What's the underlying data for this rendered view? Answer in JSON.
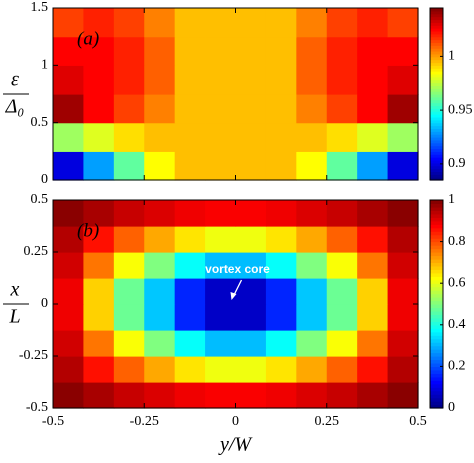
{
  "chart_data": [
    {
      "type": "heatmap",
      "label": "(a)",
      "ylabel": {
        "numerator": "ε",
        "denominator": "Δ₀"
      },
      "colormap": "jet",
      "xlim": [
        -0.5,
        0.5
      ],
      "xticks": [
        -0.5,
        -0.25,
        0,
        0.25,
        0.5
      ],
      "ylim": [
        0,
        1.5
      ],
      "yticks": [
        0,
        0.5,
        1,
        1.5
      ],
      "clim": [
        0.885,
        1.045
      ],
      "cticks": [
        0.9,
        0.95,
        1
      ],
      "z": [
        [
          0.9,
          0.93,
          0.96,
          0.985,
          0.995,
          0.995,
          0.995,
          0.995,
          0.985,
          0.96,
          0.93,
          0.9
        ],
        [
          0.97,
          0.98,
          0.99,
          0.995,
          0.995,
          0.995,
          0.995,
          0.995,
          0.995,
          0.99,
          0.98,
          0.97
        ],
        [
          1.04,
          1.025,
          1.015,
          1.005,
          0.995,
          0.995,
          0.995,
          0.995,
          1.005,
          1.015,
          1.025,
          1.04
        ],
        [
          1.03,
          1.025,
          1.02,
          1.01,
          0.995,
          0.995,
          0.995,
          0.995,
          1.01,
          1.02,
          1.025,
          1.03
        ],
        [
          1.025,
          1.025,
          1.02,
          1.01,
          0.995,
          0.995,
          0.995,
          0.995,
          1.01,
          1.02,
          1.025,
          1.025
        ],
        [
          1.015,
          1.02,
          1.015,
          1.005,
          0.995,
          0.995,
          0.995,
          0.995,
          1.005,
          1.015,
          1.02,
          1.015
        ]
      ]
    },
    {
      "type": "heatmap",
      "label": "(b)",
      "ylabel": {
        "numerator": "x",
        "denominator": "L"
      },
      "xlabel": "y/W",
      "colormap": "jet",
      "xlim": [
        -0.5,
        0.5
      ],
      "xticks": [
        -0.5,
        -0.25,
        0,
        0.25,
        0.5
      ],
      "ylim": [
        -0.5,
        0.5
      ],
      "yticks": [
        -0.5,
        -0.25,
        0,
        0.25,
        0.5
      ],
      "clim": [
        0,
        1
      ],
      "cticks": [
        0,
        0.2,
        0.4,
        0.6,
        0.8,
        1
      ],
      "annotation": {
        "text": "vortex core",
        "x": 0,
        "y": 0
      },
      "z": [
        [
          0.99,
          0.96,
          0.93,
          0.91,
          0.89,
          0.88,
          0.88,
          0.89,
          0.91,
          0.93,
          0.96,
          0.99
        ],
        [
          0.95,
          0.86,
          0.78,
          0.71,
          0.65,
          0.61,
          0.61,
          0.65,
          0.71,
          0.78,
          0.86,
          0.95
        ],
        [
          0.92,
          0.76,
          0.62,
          0.5,
          0.38,
          0.31,
          0.31,
          0.38,
          0.5,
          0.62,
          0.76,
          0.92
        ],
        [
          0.89,
          0.67,
          0.48,
          0.32,
          0.16,
          0.07,
          0.07,
          0.16,
          0.32,
          0.48,
          0.67,
          0.89
        ],
        [
          0.89,
          0.67,
          0.48,
          0.32,
          0.16,
          0.07,
          0.07,
          0.16,
          0.32,
          0.48,
          0.67,
          0.89
        ],
        [
          0.92,
          0.76,
          0.62,
          0.5,
          0.38,
          0.31,
          0.31,
          0.38,
          0.5,
          0.62,
          0.76,
          0.92
        ],
        [
          0.95,
          0.86,
          0.78,
          0.71,
          0.65,
          0.61,
          0.61,
          0.65,
          0.71,
          0.78,
          0.86,
          0.95
        ],
        [
          0.99,
          0.96,
          0.93,
          0.91,
          0.89,
          0.88,
          0.88,
          0.89,
          0.91,
          0.93,
          0.96,
          0.99
        ]
      ]
    }
  ]
}
